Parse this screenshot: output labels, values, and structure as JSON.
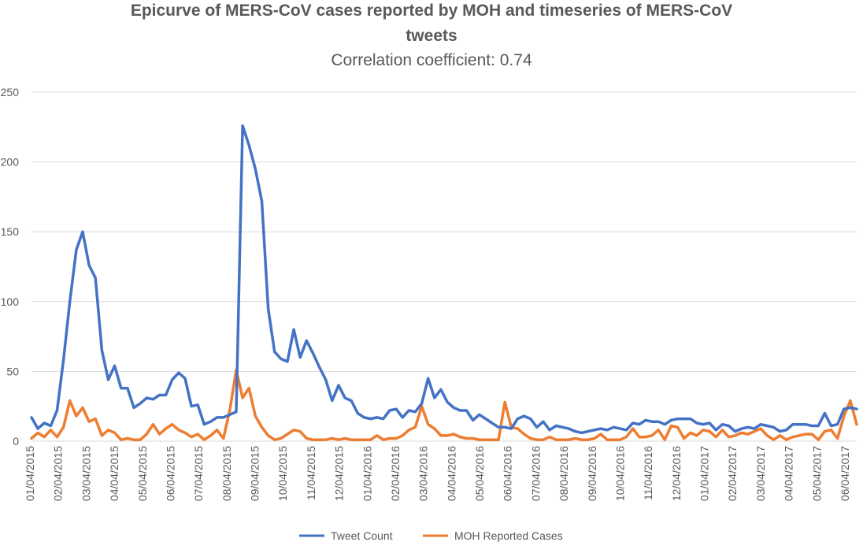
{
  "chart_data": {
    "type": "line",
    "title_line1": "Epicurve of MERS-CoV cases reported by MOH and timeseries of MERS-CoV",
    "title_line2": "tweets",
    "subtitle": "Correlation coefficient: 0.74",
    "xlabel": "",
    "ylabel": "",
    "ylim": [
      0,
      250
    ],
    "yticks": [
      0,
      50,
      100,
      150,
      200,
      250
    ],
    "grid": true,
    "legend_position": "bottom",
    "x_tick_labels": [
      "01/04/2015",
      "02/04/2015",
      "03/04/2015",
      "04/04/2015",
      "05/04/2015",
      "06/04/2015",
      "07/04/2015",
      "08/04/2015",
      "09/04/2015",
      "10/04/2015",
      "11/04/2015",
      "12/04/2015",
      "01/04/2016",
      "02/04/2016",
      "03/04/2016",
      "04/04/2016",
      "05/04/2016",
      "06/04/2016",
      "07/04/2016",
      "08/04/2016",
      "09/04/2016",
      "10/04/2016",
      "11/04/2016",
      "12/04/2016",
      "01/04/2017",
      "02/04/2017",
      "03/04/2017",
      "04/04/2017",
      "05/04/2017",
      "06/04/2017"
    ],
    "series": [
      {
        "name": "Tweet Count",
        "color": "#4472C4",
        "values": [
          17,
          9,
          13,
          11,
          22,
          58,
          100,
          137,
          150,
          126,
          117,
          65,
          44,
          54,
          38,
          38,
          24,
          27,
          31,
          30,
          33,
          33,
          44,
          49,
          45,
          25,
          26,
          12,
          14,
          17,
          17,
          19,
          21,
          226,
          212,
          195,
          172,
          95,
          64,
          59,
          57,
          80,
          60,
          72,
          63,
          53,
          44,
          29,
          40,
          31,
          29,
          20,
          17,
          16,
          17,
          16,
          22,
          23,
          17,
          22,
          21,
          27,
          45,
          31,
          37,
          28,
          24,
          22,
          22,
          15,
          19,
          16,
          13,
          10,
          10,
          9,
          16,
          18,
          16,
          10,
          14,
          8,
          11,
          10,
          9,
          7,
          6,
          7,
          8,
          9,
          8,
          10,
          9,
          8,
          13,
          12,
          15,
          14,
          14,
          12,
          15,
          16,
          16,
          16,
          13,
          12,
          13,
          8,
          12,
          11,
          7,
          9,
          10,
          9,
          12,
          11,
          10,
          7,
          8,
          12,
          12,
          12,
          11,
          11,
          20,
          11,
          12,
          23,
          24,
          23
        ]
      },
      {
        "name": "MOH Reported Cases",
        "color": "#ED7D31",
        "values": [
          2,
          6,
          3,
          8,
          3,
          10,
          29,
          18,
          24,
          14,
          16,
          4,
          8,
          6,
          1,
          2,
          1,
          1,
          5,
          12,
          5,
          9,
          12,
          8,
          6,
          3,
          5,
          1,
          4,
          8,
          2,
          22,
          51,
          31,
          38,
          18,
          10,
          4,
          1,
          2,
          5,
          8,
          7,
          2,
          1,
          1,
          1,
          2,
          1,
          2,
          1,
          1,
          1,
          1,
          4,
          1,
          2,
          2,
          4,
          8,
          10,
          25,
          12,
          9,
          4,
          4,
          5,
          3,
          2,
          2,
          1,
          1,
          1,
          1,
          28,
          10,
          9,
          5,
          2,
          1,
          1,
          3,
          1,
          1,
          1,
          2,
          1,
          1,
          2,
          5,
          1,
          1,
          1,
          3,
          9,
          3,
          3,
          4,
          8,
          1,
          11,
          10,
          2,
          6,
          4,
          8,
          7,
          3,
          8,
          3,
          4,
          6,
          5,
          7,
          9,
          4,
          1,
          4,
          1,
          3,
          4,
          5,
          5,
          1,
          7,
          8,
          2,
          18,
          29,
          12
        ]
      }
    ]
  }
}
